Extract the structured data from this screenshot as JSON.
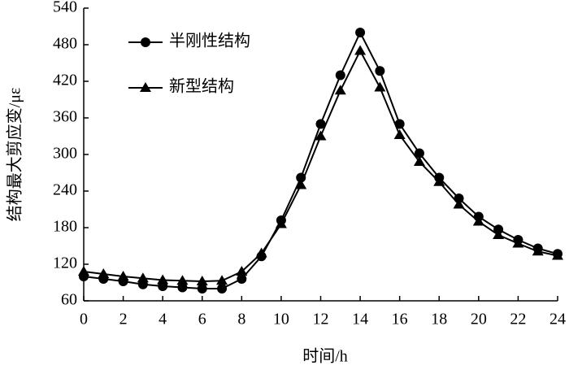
{
  "chart_data": {
    "type": "line",
    "x": [
      0,
      1,
      2,
      3,
      4,
      5,
      6,
      7,
      8,
      9,
      10,
      11,
      12,
      13,
      14,
      15,
      16,
      17,
      18,
      19,
      20,
      21,
      22,
      23,
      24
    ],
    "series": [
      {
        "name": "半刚性结构",
        "color": "#000000",
        "marker": "circle",
        "values": [
          100,
          96,
          92,
          87,
          84,
          82,
          80,
          80,
          96,
          133,
          192,
          262,
          350,
          430,
          500,
          437,
          350,
          302,
          262,
          228,
          198,
          177,
          160,
          146,
          137
        ]
      },
      {
        "name": "新型结构",
        "color": "#000000",
        "marker": "triangle",
        "values": [
          108,
          104,
          100,
          97,
          94,
          93,
          92,
          93,
          108,
          138,
          186,
          250,
          330,
          405,
          470,
          410,
          332,
          288,
          255,
          218,
          190,
          168,
          154,
          141,
          134
        ]
      }
    ],
    "x_label": "时间/h",
    "y_label": "结构最大剪应变/με",
    "xlim": [
      0,
      24
    ],
    "xticks": [
      0,
      2,
      4,
      6,
      8,
      10,
      12,
      14,
      16,
      18,
      20,
      22,
      24
    ],
    "ylim": [
      60,
      540
    ],
    "yticks": [
      60,
      120,
      180,
      240,
      300,
      360,
      420,
      480,
      540
    ],
    "grid": false
  }
}
